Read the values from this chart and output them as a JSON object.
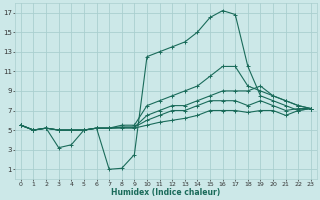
{
  "xlabel": "Humidex (Indice chaleur)",
  "bg_color": "#cce8e8",
  "grid_color": "#aacfcf",
  "line_color": "#1a6b5a",
  "xlim": [
    -0.5,
    23.5
  ],
  "ylim": [
    0,
    18
  ],
  "xticks": [
    0,
    1,
    2,
    3,
    4,
    5,
    6,
    7,
    8,
    9,
    10,
    11,
    12,
    13,
    14,
    15,
    16,
    17,
    18,
    19,
    20,
    21,
    22,
    23
  ],
  "yticks": [
    1,
    3,
    5,
    7,
    9,
    11,
    13,
    15,
    17
  ],
  "lines": [
    {
      "x": [
        0,
        1,
        2,
        3,
        4,
        5,
        6,
        7,
        8,
        9,
        10,
        11,
        12,
        13,
        14,
        15,
        16,
        17,
        18,
        19,
        20,
        21,
        22,
        23
      ],
      "y": [
        5.5,
        5.0,
        5.2,
        3.2,
        3.5,
        5.0,
        5.2,
        1.0,
        1.1,
        2.5,
        12.5,
        13.0,
        13.5,
        14.0,
        15.0,
        16.5,
        17.2,
        16.8,
        11.5,
        8.5,
        8.0,
        7.5,
        7.0,
        7.2
      ]
    },
    {
      "x": [
        0,
        1,
        2,
        3,
        4,
        5,
        6,
        7,
        8,
        9,
        10,
        11,
        12,
        13,
        14,
        15,
        16,
        17,
        18,
        19,
        20,
        21,
        22,
        23
      ],
      "y": [
        5.5,
        5.0,
        5.2,
        5.0,
        5.0,
        5.0,
        5.2,
        5.2,
        5.5,
        5.5,
        7.5,
        8.0,
        8.5,
        9.0,
        9.5,
        10.5,
        11.5,
        11.5,
        9.5,
        9.0,
        8.5,
        8.0,
        7.5,
        7.2
      ]
    },
    {
      "x": [
        0,
        1,
        2,
        3,
        4,
        5,
        6,
        7,
        8,
        9,
        10,
        11,
        12,
        13,
        14,
        15,
        16,
        17,
        18,
        19,
        20,
        21,
        22,
        23
      ],
      "y": [
        5.5,
        5.0,
        5.2,
        5.0,
        5.0,
        5.0,
        5.2,
        5.2,
        5.3,
        5.3,
        6.5,
        7.0,
        7.5,
        7.5,
        8.0,
        8.5,
        9.0,
        9.0,
        9.0,
        9.5,
        8.5,
        8.0,
        7.5,
        7.2
      ]
    },
    {
      "x": [
        0,
        1,
        2,
        3,
        4,
        5,
        6,
        7,
        8,
        9,
        10,
        11,
        12,
        13,
        14,
        15,
        16,
        17,
        18,
        19,
        20,
        21,
        22,
        23
      ],
      "y": [
        5.5,
        5.0,
        5.2,
        5.0,
        5.0,
        5.0,
        5.2,
        5.2,
        5.3,
        5.3,
        6.0,
        6.5,
        7.0,
        7.0,
        7.5,
        8.0,
        8.0,
        8.0,
        7.5,
        8.0,
        7.5,
        7.0,
        7.2,
        7.2
      ]
    },
    {
      "x": [
        0,
        1,
        2,
        3,
        4,
        5,
        6,
        7,
        8,
        9,
        10,
        11,
        12,
        13,
        14,
        15,
        16,
        17,
        18,
        19,
        20,
        21,
        22,
        23
      ],
      "y": [
        5.5,
        5.0,
        5.2,
        5.0,
        5.0,
        5.0,
        5.2,
        5.2,
        5.2,
        5.2,
        5.5,
        5.8,
        6.0,
        6.2,
        6.5,
        7.0,
        7.0,
        7.0,
        6.8,
        7.0,
        7.0,
        6.5,
        7.0,
        7.2
      ]
    }
  ]
}
